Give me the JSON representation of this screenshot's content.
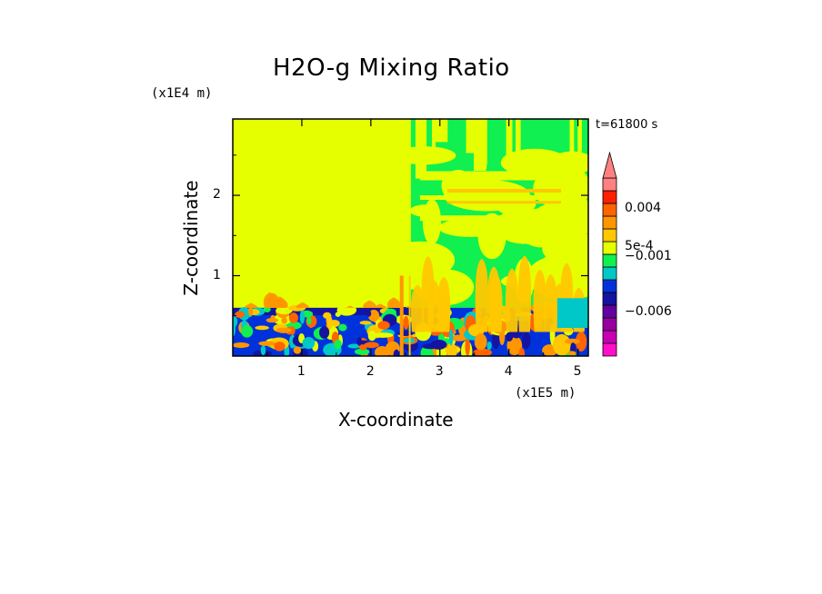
{
  "chart_data": {
    "type": "heatmap",
    "title": "H2O-g Mixing Ratio",
    "time_label": "t=61800 s",
    "xlabel": "X-coordinate",
    "ylabel": "Z-coordinate",
    "x_unit": "(x1E5 m)",
    "y_unit": "(x1E4 m)",
    "xlim": [
      0,
      5.15
    ],
    "ylim": [
      0,
      2.95
    ],
    "x_ticks": [
      {
        "value": 1,
        "label": "1"
      },
      {
        "value": 2,
        "label": "2"
      },
      {
        "value": 3,
        "label": "3"
      },
      {
        "value": 4,
        "label": "4"
      },
      {
        "value": 5,
        "label": "5"
      }
    ],
    "y_ticks": [
      {
        "value": 1,
        "label": "1"
      },
      {
        "value": 2,
        "label": "2"
      }
    ],
    "colorbar": {
      "colors": [
        "#ff10c8",
        "#c800b4",
        "#9600a0",
        "#6400a0",
        "#1414a0",
        "#0032dc",
        "#00c8c8",
        "#10f050",
        "#e6ff00",
        "#ffc800",
        "#ff9600",
        "#ff6400",
        "#ff2000",
        "#ff8080"
      ],
      "extend_top": true,
      "labels": [
        {
          "text": "0.004",
          "index": 11.6
        },
        {
          "text": "5e-4",
          "index": 8.6
        },
        {
          "text": "−0.001",
          "index": 7.8
        },
        {
          "text": "−0.006",
          "index": 3.4
        }
      ]
    },
    "fields": {
      "background": "#e6ff00",
      "green": "#10f050",
      "cyan": "#00c8c8",
      "blue": "#0032dc",
      "darkblue": "#1414a0",
      "orange": "#ffc800",
      "darkorange": "#ff9600",
      "red": "#ff6400"
    }
  }
}
